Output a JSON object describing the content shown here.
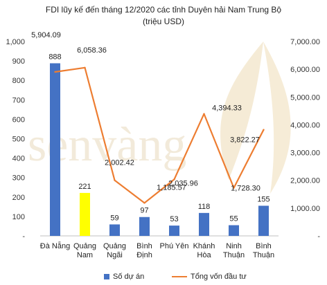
{
  "chart_data": {
    "type": "bar",
    "title": "FDI lũy kế đến tháng 12/2020 các tỉnh Duyên hải Nam Trung Bộ",
    "subtitle": "(triệu USD)",
    "categories": [
      [
        "Đà Nẵng"
      ],
      [
        "Quảng",
        "Nam"
      ],
      [
        "Quảng",
        "Ngãi"
      ],
      [
        "Bình",
        "Định"
      ],
      [
        "Phú Yên"
      ],
      [
        "Khánh",
        "Hòa"
      ],
      [
        "Ninh",
        "Thuận"
      ],
      [
        "Bình",
        "Thuận"
      ]
    ],
    "series": [
      {
        "name": "Số dự án",
        "type": "bar",
        "axis": "left",
        "values": [
          888,
          221,
          59,
          97,
          53,
          118,
          55,
          155
        ],
        "labels": [
          "888",
          "221",
          "59",
          "97",
          "53",
          "118",
          "55",
          "155"
        ],
        "color": "#4472C4",
        "highlight_index": 1,
        "highlight_color": "#FFFF00"
      },
      {
        "name": "Tổng vốn đầu tư",
        "type": "line",
        "axis": "right",
        "values": [
          5904.09,
          6058.36,
          2002.42,
          1185.57,
          2035.96,
          4394.33,
          1728.3,
          3822.27
        ],
        "labels": [
          "5,904.09",
          "6,058.36",
          "2,002.42",
          "1,185.57",
          "2,035.96",
          "4,394.33",
          "1,728.30",
          "3,822.27"
        ],
        "color": "#ED7D31"
      }
    ],
    "y_left": {
      "ylim": [
        0,
        1000
      ],
      "ticks": [
        "-",
        "100",
        "200",
        "300",
        "400",
        "500",
        "600",
        "700",
        "800",
        "900",
        "1,000"
      ]
    },
    "y_right": {
      "ylim": [
        0,
        7000
      ],
      "ticks": [
        "-",
        "1,000.00",
        "2,000.00",
        "3,000.00",
        "4,000.00",
        "5,000.00",
        "6,000.00",
        "7,000.00"
      ]
    },
    "grid": false,
    "legend": "bottom",
    "watermark": "senvàng"
  }
}
